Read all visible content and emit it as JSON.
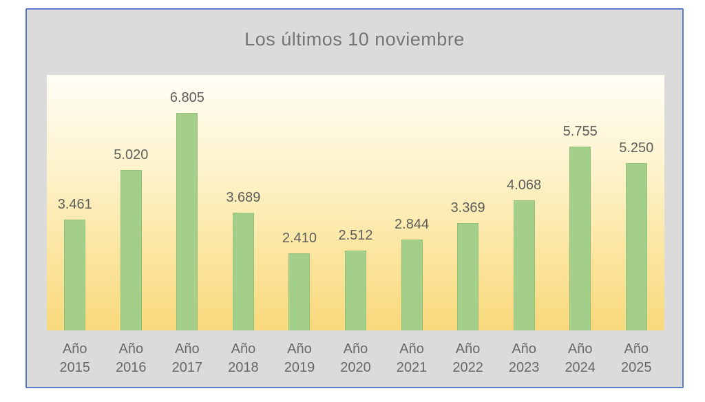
{
  "title": "Los últimos 10 noviembre",
  "chart_data": {
    "type": "bar",
    "title": "Los últimos 10 noviembre",
    "category_prefix": "Año",
    "years": [
      "2015",
      "2016",
      "2017",
      "2018",
      "2019",
      "2020",
      "2021",
      "2022",
      "2023",
      "2024",
      "2025"
    ],
    "categories": [
      "Año 2015",
      "Año 2016",
      "Año 2017",
      "Año 2018",
      "Año 2019",
      "Año 2020",
      "Año 2021",
      "Año 2022",
      "Año 2023",
      "Año 2024",
      "Año 2025"
    ],
    "values": [
      3461,
      5020,
      6805,
      3689,
      2410,
      2512,
      2844,
      3369,
      4068,
      5755,
      5250
    ],
    "value_labels": [
      "3.461",
      "5.020",
      "6.805",
      "3.689",
      "2.410",
      "2.512",
      "2.844",
      "3.369",
      "4.068",
      "5.755",
      "5.250"
    ],
    "xlabel": "",
    "ylabel": "",
    "ylim": [
      0,
      8000
    ],
    "grid": false,
    "legend": false
  },
  "colors": {
    "frame_bg": "#dbdbdb",
    "frame_border": "#5b7ac8",
    "bar_fill": "#a3cf8b",
    "bar_border": "#93c07a",
    "title_color": "#757575",
    "label_color": "#5d5d5a",
    "axis_color": "#686868",
    "grad_top": "#fffef6",
    "grad_mid1": "#fdf2c8",
    "grad_mid2": "#fbe49c",
    "grad_bottom": "#f9d97c"
  }
}
